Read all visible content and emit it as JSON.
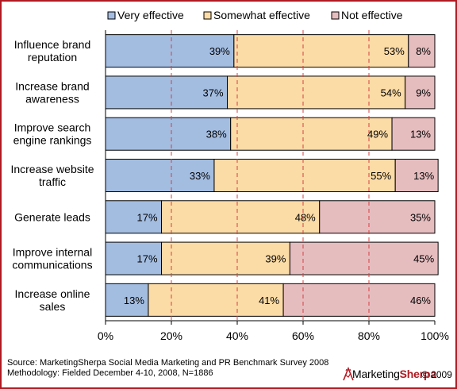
{
  "chart_data": {
    "type": "bar",
    "orientation": "horizontal",
    "stacked": true,
    "categories": [
      [
        "Influence brand",
        "reputation"
      ],
      [
        "Increase brand",
        "awareness"
      ],
      [
        "Improve search",
        "engine rankings"
      ],
      [
        "Increase website",
        "traffic"
      ],
      [
        "Generate leads"
      ],
      [
        "Improve internal",
        "communications"
      ],
      [
        "Increase online",
        "sales"
      ]
    ],
    "series": [
      {
        "name": "Very effective",
        "color": "#a3bde1",
        "values": [
          39,
          37,
          38,
          33,
          17,
          17,
          13
        ],
        "labels": [
          "39%",
          "37%",
          "38%",
          "33%",
          "17%",
          "17%",
          "13%"
        ]
      },
      {
        "name": "Somewhat effective",
        "color": "#fbdba6",
        "values": [
          53,
          54,
          49,
          55,
          48,
          39,
          41
        ],
        "labels": [
          "53%",
          "54%",
          "49%",
          "55%",
          "48%",
          "39%",
          "41%"
        ]
      },
      {
        "name": "Not effective",
        "color": "#e6bdbf",
        "values": [
          8,
          9,
          13,
          13,
          35,
          45,
          46
        ],
        "labels": [
          "8%",
          "9%",
          "13%",
          "13%",
          "35%",
          "45%",
          "46%"
        ]
      }
    ],
    "xlim": [
      0,
      100
    ],
    "xticks": [
      "0%",
      "20%",
      "40%",
      "60%",
      "80%",
      "100%"
    ],
    "gridlines": "dashed vertical",
    "legend": "top"
  },
  "footer": {
    "source": "Source: MarketingSherpa Social Media Marketing and PR Benchmark Survey 2008",
    "methodology": "Methodology: Fielded December 4-10, 2008, N=1886"
  },
  "logo": {
    "brand_part1": "Marketing",
    "brand_part2": "Sherpa",
    "copyright": "© 2009"
  }
}
